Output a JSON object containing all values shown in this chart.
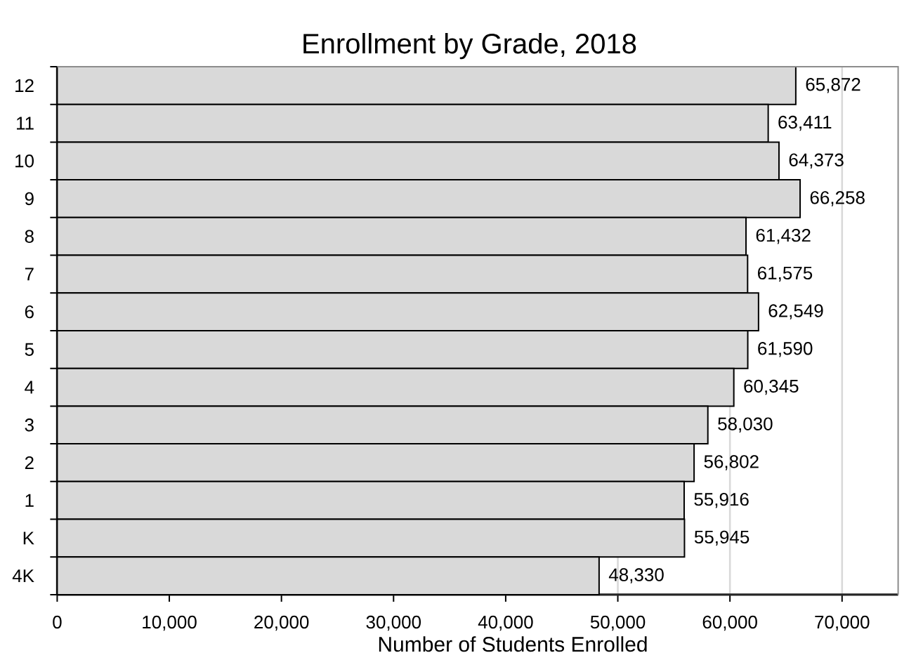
{
  "chart_data": {
    "type": "bar",
    "orientation": "horizontal",
    "title": "Enrollment by Grade, 2018",
    "xlabel": "Number of Students Enrolled",
    "categories": [
      "12",
      "11",
      "10",
      "9",
      "8",
      "7",
      "6",
      "5",
      "4",
      "3",
      "2",
      "1",
      "K",
      "4K"
    ],
    "values": [
      65872,
      63411,
      64373,
      66258,
      61432,
      61575,
      62549,
      61590,
      60345,
      58030,
      56802,
      55916,
      55945,
      48330
    ],
    "value_labels": [
      "65,872",
      "63,411",
      "64,373",
      "66,258",
      "61,432",
      "61,575",
      "62,549",
      "61,590",
      "60,345",
      "58,030",
      "56,802",
      "55,916",
      "55,945",
      "48,330"
    ],
    "color": "#d9d9d9",
    "xlim": [
      0,
      75000
    ],
    "xticks": [
      0,
      {
        "value": 10000,
        "label": "10,000"
      },
      {
        "value": 20000,
        "label": "20,000"
      },
      {
        "value": 30000,
        "label": "30,000"
      },
      {
        "value": 40000,
        "label": "40,000"
      },
      {
        "value": 50000,
        "label": "50,000"
      },
      {
        "value": 60000,
        "label": "60,000"
      },
      {
        "value": 70000,
        "label": "70,000"
      }
    ],
    "grid": "x"
  }
}
